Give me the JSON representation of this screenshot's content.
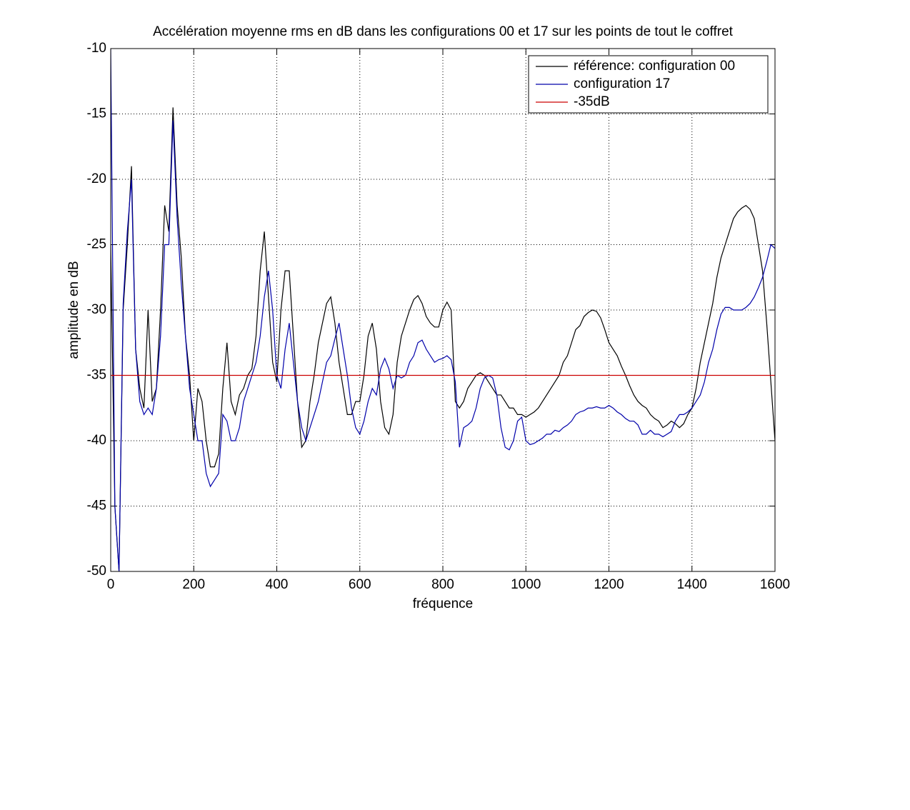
{
  "chart_data": {
    "type": "line",
    "title": "Accélération moyenne rms en dB dans les configurations 00 et 17 sur les points de tout le coffret",
    "x_label": "fréquence",
    "y_label": "amplitude en dB",
    "xlim": [
      0,
      1600
    ],
    "ylim": [
      -50,
      -10
    ],
    "xticks": [
      0,
      200,
      400,
      600,
      800,
      1000,
      1200,
      1400,
      1600
    ],
    "yticks": [
      -50,
      -45,
      -40,
      -35,
      -30,
      -25,
      -20,
      -15,
      -10
    ],
    "grid": true,
    "legend": "northeast",
    "x": [
      0,
      10,
      20,
      30,
      40,
      50,
      60,
      70,
      80,
      90,
      100,
      110,
      120,
      130,
      140,
      150,
      160,
      170,
      180,
      190,
      200,
      210,
      220,
      230,
      240,
      250,
      260,
      270,
      280,
      290,
      300,
      310,
      320,
      330,
      340,
      350,
      360,
      370,
      380,
      390,
      400,
      410,
      420,
      430,
      440,
      450,
      460,
      470,
      480,
      490,
      500,
      510,
      520,
      530,
      540,
      550,
      560,
      570,
      580,
      590,
      600,
      610,
      620,
      630,
      640,
      650,
      660,
      670,
      680,
      690,
      700,
      710,
      720,
      730,
      740,
      750,
      760,
      770,
      780,
      790,
      800,
      810,
      820,
      830,
      840,
      850,
      860,
      870,
      880,
      890,
      900,
      910,
      920,
      930,
      940,
      950,
      960,
      970,
      980,
      990,
      1000,
      1010,
      1020,
      1030,
      1040,
      1050,
      1060,
      1070,
      1080,
      1090,
      1100,
      1110,
      1120,
      1130,
      1140,
      1150,
      1160,
      1170,
      1180,
      1190,
      1200,
      1210,
      1220,
      1230,
      1240,
      1250,
      1260,
      1270,
      1280,
      1290,
      1300,
      1310,
      1320,
      1330,
      1340,
      1350,
      1360,
      1370,
      1380,
      1390,
      1400,
      1410,
      1420,
      1430,
      1440,
      1450,
      1460,
      1470,
      1480,
      1490,
      1500,
      1510,
      1520,
      1530,
      1540,
      1550,
      1560,
      1570,
      1580,
      1590,
      1600
    ],
    "series": [
      {
        "name": "référence: configuration 00",
        "color": "#000000",
        "values": [
          -25,
          -45,
          -50,
          -30,
          -25,
          -19,
          -33,
          -36,
          -37.5,
          -30,
          -37,
          -36,
          -30,
          -22,
          -24,
          -14.5,
          -22,
          -26,
          -32,
          -35,
          -40,
          -36,
          -37,
          -40,
          -42,
          -42,
          -41,
          -36,
          -32.5,
          -37,
          -38,
          -36.5,
          -36,
          -35,
          -34.5,
          -32,
          -27,
          -24,
          -29,
          -34,
          -35.5,
          -30,
          -27,
          -27,
          -32,
          -37,
          -40.5,
          -40,
          -37,
          -35,
          -32.5,
          -31,
          -29.5,
          -29,
          -31,
          -34,
          -36,
          -38,
          -38,
          -37,
          -37,
          -35,
          -32,
          -31,
          -33,
          -37,
          -39,
          -39.5,
          -38,
          -34,
          -32,
          -31,
          -30,
          -29.2,
          -28.9,
          -29.5,
          -30.5,
          -31,
          -31.3,
          -31.3,
          -30,
          -29.4,
          -30,
          -37,
          -37.5,
          -37,
          -36,
          -35.5,
          -35,
          -34.8,
          -35,
          -35.5,
          -36,
          -36.5,
          -36.5,
          -37,
          -37.5,
          -37.5,
          -38,
          -38,
          -38.2,
          -38,
          -37.8,
          -37.5,
          -37,
          -36.5,
          -36,
          -35.5,
          -35,
          -34,
          -33.5,
          -32.5,
          -31.5,
          -31.2,
          -30.5,
          -30.2,
          -30,
          -30.1,
          -30.6,
          -31.5,
          -32.5,
          -33,
          -33.5,
          -34.3,
          -35,
          -35.8,
          -36.5,
          -37,
          -37.3,
          -37.5,
          -38,
          -38.3,
          -38.5,
          -39,
          -38.8,
          -38.5,
          -38.7,
          -39,
          -38.7,
          -38,
          -37.5,
          -36,
          -34,
          -32.5,
          -31,
          -29.5,
          -27.5,
          -26,
          -25,
          -24,
          -23,
          -22.5,
          -22.2,
          -22,
          -22.3,
          -23,
          -25,
          -27,
          -31,
          -35.5,
          -40
        ]
      },
      {
        "name": "configuration 17",
        "color": "#0000aa",
        "values": [
          -10,
          -45,
          -50,
          -29.5,
          -24,
          -20,
          -33,
          -37,
          -38,
          -37.5,
          -38,
          -36,
          -32,
          -25,
          -25,
          -15.5,
          -23,
          -28,
          -32,
          -36,
          -38,
          -40,
          -40,
          -42.5,
          -43.5,
          -43,
          -42.5,
          -38,
          -38.5,
          -40,
          -40,
          -39,
          -37,
          -36,
          -35,
          -34,
          -32,
          -29,
          -27,
          -30,
          -35,
          -36,
          -33,
          -31,
          -34,
          -37,
          -39,
          -40,
          -39,
          -38,
          -37,
          -35.5,
          -34,
          -33.5,
          -32.2,
          -31,
          -33,
          -35,
          -37.5,
          -39,
          -39.5,
          -38.5,
          -37,
          -36,
          -36.5,
          -34.5,
          -33.7,
          -34.5,
          -36,
          -35,
          -35.2,
          -35,
          -34,
          -33.5,
          -32.5,
          -32.3,
          -33,
          -33.5,
          -34,
          -33.8,
          -33.7,
          -33.5,
          -33.8,
          -35.5,
          -40.5,
          -39,
          -38.8,
          -38.5,
          -37.5,
          -36,
          -35.2,
          -35,
          -35.2,
          -36.5,
          -39,
          -40.5,
          -40.7,
          -40,
          -38.5,
          -38.2,
          -40,
          -40.3,
          -40.2,
          -40,
          -39.8,
          -39.5,
          -39.5,
          -39.2,
          -39.3,
          -39,
          -38.8,
          -38.5,
          -38,
          -37.8,
          -37.7,
          -37.5,
          -37.5,
          -37.4,
          -37.5,
          -37.5,
          -37.3,
          -37.5,
          -37.8,
          -38,
          -38.3,
          -38.5,
          -38.5,
          -38.8,
          -39.5,
          -39.5,
          -39.2,
          -39.5,
          -39.5,
          -39.7,
          -39.5,
          -39.3,
          -38.5,
          -38,
          -38,
          -37.8,
          -37.5,
          -37,
          -36.5,
          -35.5,
          -34,
          -33,
          -31.5,
          -30.3,
          -29.8,
          -29.8,
          -30,
          -30,
          -30,
          -29.8,
          -29.5,
          -29,
          -28.3,
          -27.5,
          -26.3,
          -25,
          -25.3
        ]
      },
      {
        "name": "-35dB",
        "color": "#cc0000",
        "x": [
          0,
          1600
        ],
        "values": [
          -35,
          -35
        ]
      }
    ]
  }
}
